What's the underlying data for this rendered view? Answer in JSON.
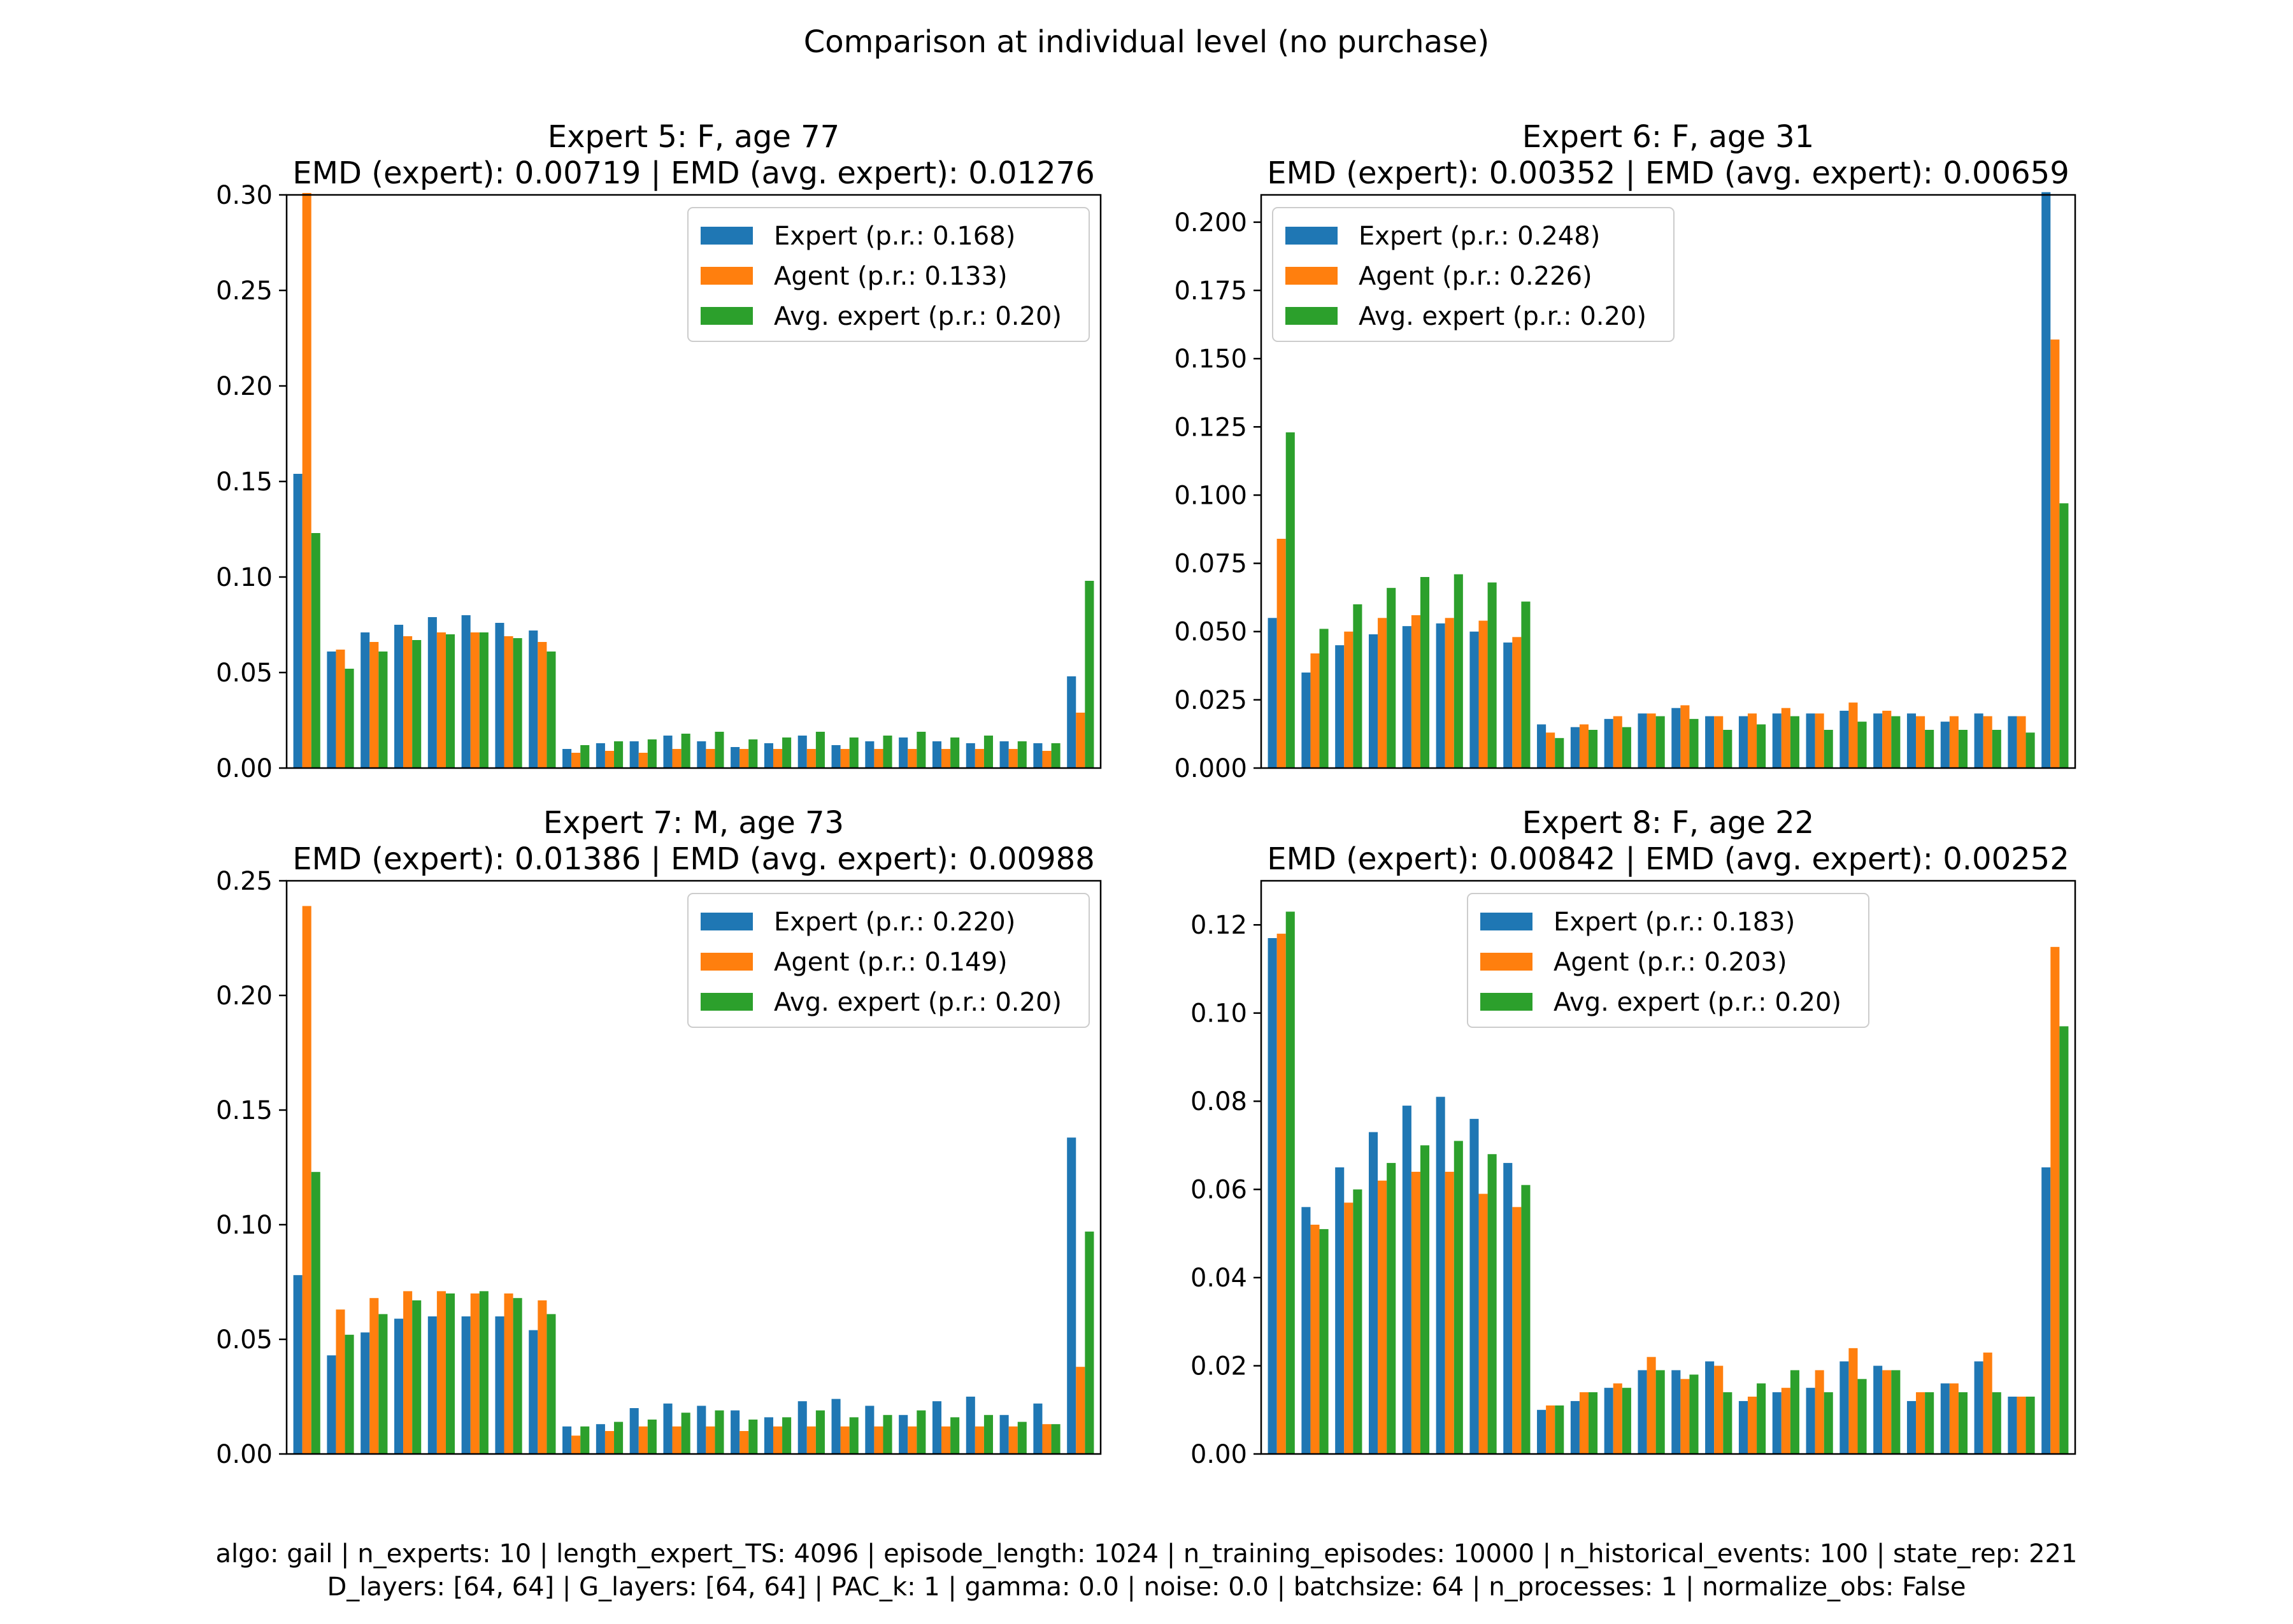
{
  "figure": {
    "title": "Comparison at individual level (no purchase)",
    "footer_line1": "algo: gail | n_experts: 10 | length_expert_TS: 4096 | episode_length: 1024 | n_training_episodes: 10000 | n_historical_events: 100 | state_rep: 221",
    "footer_line2": "D_layers: [64, 64] | G_layers: [64, 64] | PAC_k: 1 | gamma: 0.0 | noise: 0.0 | batchsize: 64 | n_processes: 1 | normalize_obs: False"
  },
  "colors": {
    "expert": "#1f77b4",
    "agent": "#ff7f0e",
    "avg_expert": "#2ca02c"
  },
  "chart_data": [
    {
      "type": "bar",
      "title": "Expert 5: F, age 77",
      "subtitle": "EMD (expert): 0.00719 | EMD (avg. expert): 0.01276",
      "ylim": [
        0,
        0.3
      ],
      "yticks": [
        0,
        0.05,
        0.1,
        0.15,
        0.2,
        0.25,
        0.3
      ],
      "ytick_labels": [
        "0.00",
        "0.05",
        "0.10",
        "0.15",
        "0.20",
        "0.25",
        "0.30"
      ],
      "xticks": "none",
      "legend_position": "upper-right",
      "series": [
        {
          "name": "Expert (p.r.: 0.168)",
          "color": "#1f77b4",
          "values": [
            0.154,
            0.061,
            0.071,
            0.075,
            0.079,
            0.08,
            0.076,
            0.072,
            0.01,
            0.013,
            0.014,
            0.017,
            0.014,
            0.011,
            0.013,
            0.017,
            0.012,
            0.014,
            0.016,
            0.014,
            0.013,
            0.014,
            0.013,
            0.048
          ]
        },
        {
          "name": "Agent (p.r.: 0.133)",
          "color": "#ff7f0e",
          "values": [
            0.301,
            0.062,
            0.066,
            0.069,
            0.071,
            0.071,
            0.069,
            0.066,
            0.008,
            0.009,
            0.008,
            0.01,
            0.01,
            0.01,
            0.01,
            0.01,
            0.01,
            0.01,
            0.01,
            0.01,
            0.01,
            0.01,
            0.009,
            0.029
          ]
        },
        {
          "name": "Avg. expert (p.r.: 0.20)",
          "color": "#2ca02c",
          "values": [
            0.123,
            0.052,
            0.061,
            0.067,
            0.07,
            0.071,
            0.068,
            0.061,
            0.012,
            0.014,
            0.015,
            0.018,
            0.019,
            0.015,
            0.016,
            0.019,
            0.016,
            0.017,
            0.019,
            0.016,
            0.017,
            0.014,
            0.013,
            0.098
          ]
        }
      ]
    },
    {
      "type": "bar",
      "title": "Expert 6: F, age 31",
      "subtitle": "EMD (expert): 0.00352 | EMD (avg. expert): 0.00659",
      "ylim": [
        0,
        0.21
      ],
      "yticks": [
        0,
        0.025,
        0.05,
        0.075,
        0.1,
        0.125,
        0.15,
        0.175,
        0.2
      ],
      "ytick_labels": [
        "0.000",
        "0.025",
        "0.050",
        "0.075",
        "0.100",
        "0.125",
        "0.150",
        "0.175",
        "0.200"
      ],
      "xticks": "none",
      "legend_position": "upper-left",
      "series": [
        {
          "name": "Expert (p.r.: 0.248)",
          "color": "#1f77b4",
          "values": [
            0.055,
            0.035,
            0.045,
            0.049,
            0.052,
            0.053,
            0.05,
            0.046,
            0.016,
            0.015,
            0.018,
            0.02,
            0.022,
            0.019,
            0.019,
            0.02,
            0.02,
            0.021,
            0.02,
            0.02,
            0.017,
            0.02,
            0.019,
            0.211
          ]
        },
        {
          "name": "Agent (p.r.: 0.226)",
          "color": "#ff7f0e",
          "values": [
            0.084,
            0.042,
            0.05,
            0.055,
            0.056,
            0.055,
            0.054,
            0.048,
            0.013,
            0.016,
            0.019,
            0.02,
            0.023,
            0.019,
            0.02,
            0.022,
            0.02,
            0.024,
            0.021,
            0.019,
            0.019,
            0.019,
            0.019,
            0.157
          ]
        },
        {
          "name": "Avg. expert (p.r.: 0.20)",
          "color": "#2ca02c",
          "values": [
            0.123,
            0.051,
            0.06,
            0.066,
            0.07,
            0.071,
            0.068,
            0.061,
            0.011,
            0.014,
            0.015,
            0.019,
            0.018,
            0.014,
            0.016,
            0.019,
            0.014,
            0.017,
            0.019,
            0.014,
            0.014,
            0.014,
            0.013,
            0.097
          ]
        }
      ]
    },
    {
      "type": "bar",
      "title": "Expert 7: M, age 73",
      "subtitle": "EMD (expert): 0.01386 | EMD (avg. expert): 0.00988",
      "ylim": [
        0,
        0.25
      ],
      "yticks": [
        0,
        0.05,
        0.1,
        0.15,
        0.2,
        0.25
      ],
      "ytick_labels": [
        "0.00",
        "0.05",
        "0.10",
        "0.15",
        "0.20",
        "0.25"
      ],
      "xticks": "none",
      "legend_position": "upper-right",
      "series": [
        {
          "name": "Expert (p.r.: 0.220)",
          "color": "#1f77b4",
          "values": [
            0.078,
            0.043,
            0.053,
            0.059,
            0.06,
            0.06,
            0.06,
            0.054,
            0.012,
            0.013,
            0.02,
            0.022,
            0.021,
            0.019,
            0.016,
            0.023,
            0.024,
            0.021,
            0.017,
            0.023,
            0.025,
            0.017,
            0.022,
            0.138
          ]
        },
        {
          "name": "Agent (p.r.: 0.149)",
          "color": "#ff7f0e",
          "values": [
            0.239,
            0.063,
            0.068,
            0.071,
            0.071,
            0.07,
            0.07,
            0.067,
            0.008,
            0.01,
            0.012,
            0.012,
            0.012,
            0.01,
            0.012,
            0.012,
            0.012,
            0.012,
            0.012,
            0.012,
            0.012,
            0.012,
            0.013,
            0.038
          ]
        },
        {
          "name": "Avg. expert (p.r.: 0.20)",
          "color": "#2ca02c",
          "values": [
            0.123,
            0.052,
            0.061,
            0.067,
            0.07,
            0.071,
            0.068,
            0.061,
            0.012,
            0.014,
            0.015,
            0.018,
            0.019,
            0.015,
            0.016,
            0.019,
            0.016,
            0.017,
            0.019,
            0.016,
            0.017,
            0.014,
            0.013,
            0.097
          ]
        }
      ]
    },
    {
      "type": "bar",
      "title": "Expert 8: F, age 22",
      "subtitle": "EMD (expert): 0.00842 | EMD (avg. expert): 0.00252",
      "ylim": [
        0,
        0.13
      ],
      "yticks": [
        0,
        0.02,
        0.04,
        0.06,
        0.08,
        0.1,
        0.12
      ],
      "ytick_labels": [
        "0.00",
        "0.02",
        "0.04",
        "0.06",
        "0.08",
        "0.10",
        "0.12"
      ],
      "xticks": "none",
      "legend_position": "upper-center",
      "series": [
        {
          "name": "Expert (p.r.: 0.183)",
          "color": "#1f77b4",
          "values": [
            0.117,
            0.056,
            0.065,
            0.073,
            0.079,
            0.081,
            0.076,
            0.066,
            0.01,
            0.012,
            0.015,
            0.019,
            0.019,
            0.021,
            0.012,
            0.014,
            0.015,
            0.021,
            0.02,
            0.012,
            0.016,
            0.021,
            0.013,
            0.065
          ]
        },
        {
          "name": "Agent (p.r.: 0.203)",
          "color": "#ff7f0e",
          "values": [
            0.118,
            0.052,
            0.057,
            0.062,
            0.064,
            0.064,
            0.059,
            0.056,
            0.011,
            0.014,
            0.016,
            0.022,
            0.017,
            0.02,
            0.013,
            0.015,
            0.019,
            0.024,
            0.019,
            0.014,
            0.016,
            0.023,
            0.013,
            0.115
          ]
        },
        {
          "name": "Avg. expert (p.r.: 0.20)",
          "color": "#2ca02c",
          "values": [
            0.123,
            0.051,
            0.06,
            0.066,
            0.07,
            0.071,
            0.068,
            0.061,
            0.011,
            0.014,
            0.015,
            0.019,
            0.018,
            0.014,
            0.016,
            0.019,
            0.014,
            0.017,
            0.019,
            0.014,
            0.014,
            0.014,
            0.013,
            0.097
          ]
        }
      ]
    }
  ]
}
